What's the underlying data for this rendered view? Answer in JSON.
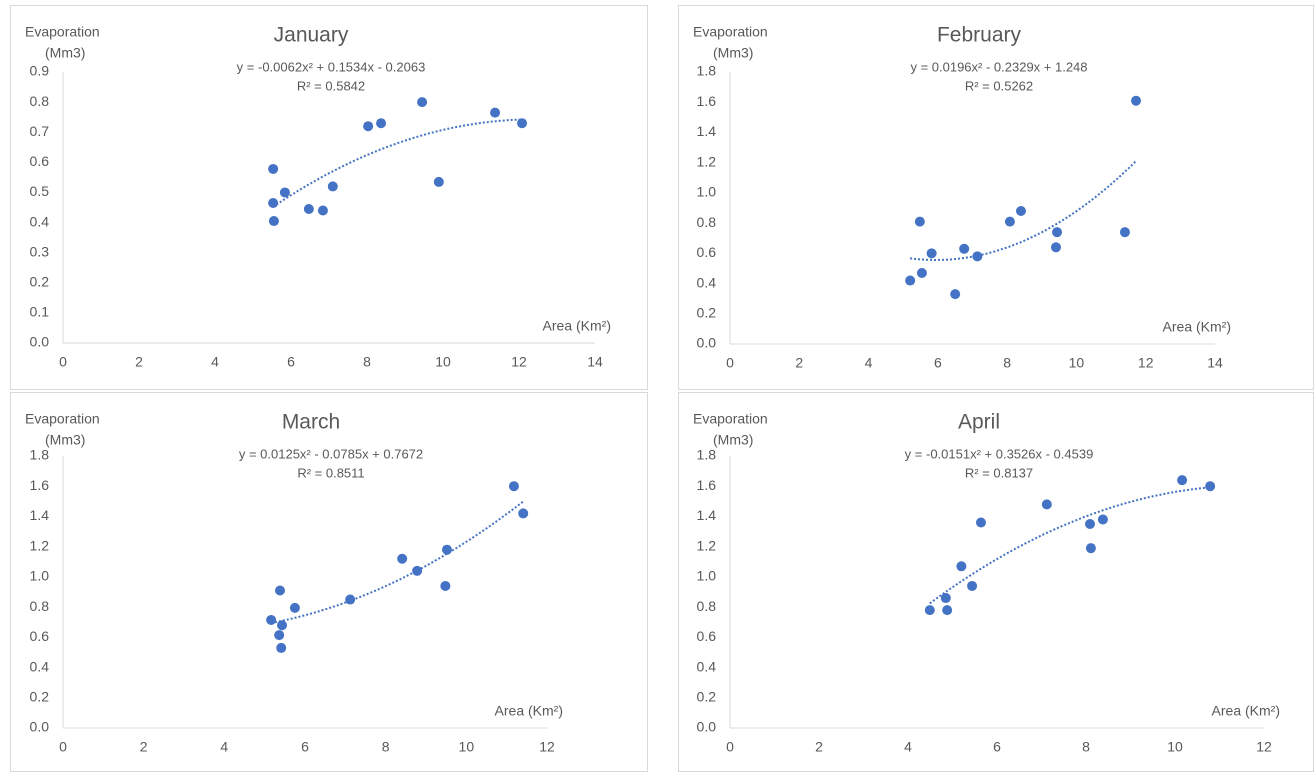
{
  "chart_data": [
    {
      "type": "scatter",
      "title": "January",
      "ylabel": [
        "Evaporation",
        "(Mm3)"
      ],
      "xlabel": "Area (Km²)",
      "equation": "y = -0.0062x² + 0.1534x - 0.2063",
      "r2": "R² = 0.5842",
      "trendline": "polynomial",
      "color": "#4472c4",
      "x": [
        5.53,
        5.53,
        5.55,
        5.84,
        6.47,
        6.84,
        7.1,
        8.03,
        8.37,
        9.45,
        9.89,
        11.37,
        12.08
      ],
      "values": [
        0.578,
        0.465,
        0.405,
        0.5,
        0.445,
        0.44,
        0.52,
        0.72,
        0.73,
        0.8,
        0.535,
        0.765,
        0.73
      ],
      "xlim": [
        0,
        14
      ],
      "xticks": [
        0,
        2,
        4,
        6,
        8,
        10,
        12,
        14
      ],
      "ylim": [
        0,
        0.9
      ],
      "yticks": [
        {
          "value": 0,
          "label": "0.0"
        },
        0.1,
        0.2,
        0.3,
        0.4,
        0.5,
        0.6,
        0.7,
        0.8,
        0.9
      ]
    },
    {
      "type": "scatter",
      "title": "February",
      "ylabel": [
        "Evaporation",
        "(Mm3)"
      ],
      "xlabel": "Area (Km²)",
      "equation": "y = 0.0196x² - 0.2329x + 1.248",
      "r2": "R² = 0.5262",
      "trendline": "polynomial",
      "color": "#4472c4",
      "x": [
        5.2,
        5.48,
        5.54,
        5.82,
        6.5,
        6.76,
        7.14,
        8.08,
        8.4,
        9.44,
        9.41,
        11.4,
        11.72
      ],
      "values": [
        0.42,
        0.81,
        0.47,
        0.6,
        0.33,
        0.63,
        0.58,
        0.81,
        0.88,
        0.74,
        0.64,
        0.74,
        1.61
      ],
      "xlim": [
        0,
        14
      ],
      "xticks": [
        0,
        2,
        4,
        6,
        8,
        10,
        12,
        14
      ],
      "ylim": [
        0,
        1.8
      ],
      "yticks": [
        {
          "value": 0,
          "label": "0.0"
        },
        0.2,
        0.4,
        0.6,
        0.8,
        {
          "value": 1,
          "label": "1.0"
        },
        1.2,
        1.4,
        1.6,
        1.8
      ]
    },
    {
      "type": "scatter",
      "title": "March",
      "ylabel": [
        "Evaporation",
        "(Mm3)"
      ],
      "xlabel": "Area (Km²)",
      "equation": "y = 0.0125x² - 0.0785x + 0.7672",
      "r2": "R² = 0.8511",
      "trendline": "polynomial",
      "color": "#4472c4",
      "x": [
        5.16,
        5.38,
        5.36,
        5.43,
        5.41,
        5.75,
        7.12,
        8.41,
        8.78,
        9.48,
        9.52,
        11.18,
        11.41
      ],
      "values": [
        0.715,
        0.91,
        0.615,
        0.68,
        0.53,
        0.795,
        0.85,
        1.12,
        1.04,
        0.94,
        1.18,
        1.6,
        1.42
      ],
      "xlim": [
        0,
        12
      ],
      "xticks": [
        0,
        2,
        4,
        6,
        8,
        10,
        12
      ],
      "ylim": [
        0,
        1.8
      ],
      "yticks": [
        {
          "value": 0,
          "label": "0.0"
        },
        0.2,
        0.4,
        0.6,
        0.8,
        {
          "value": 1,
          "label": "1.0"
        },
        1.2,
        1.4,
        1.6,
        1.8
      ]
    },
    {
      "type": "scatter",
      "title": "April",
      "ylabel": [
        "Evaporation",
        "(Mm3)"
      ],
      "xlabel": "Area (Km²)",
      "equation": "y = -0.0151x² + 0.3526x - 0.4539",
      "r2": "R² = 0.8137",
      "trendline": "polynomial",
      "color": "#4472c4",
      "x": [
        4.49,
        4.85,
        4.88,
        5.2,
        5.44,
        5.64,
        7.12,
        8.09,
        8.11,
        8.38,
        10.16,
        10.79
      ],
      "values": [
        0.78,
        0.86,
        0.78,
        1.07,
        0.94,
        1.36,
        1.48,
        1.35,
        1.19,
        1.38,
        1.64,
        1.6
      ],
      "xlim": [
        0,
        12
      ],
      "xticks": [
        0,
        2,
        4,
        6,
        8,
        10,
        12
      ],
      "ylim": [
        0,
        1.8
      ],
      "yticks": [
        {
          "value": 0,
          "label": "0.0"
        },
        0.2,
        0.4,
        0.6,
        0.8,
        {
          "value": 1,
          "label": "1.0"
        },
        1.2,
        1.4,
        1.6,
        1.8
      ]
    }
  ]
}
